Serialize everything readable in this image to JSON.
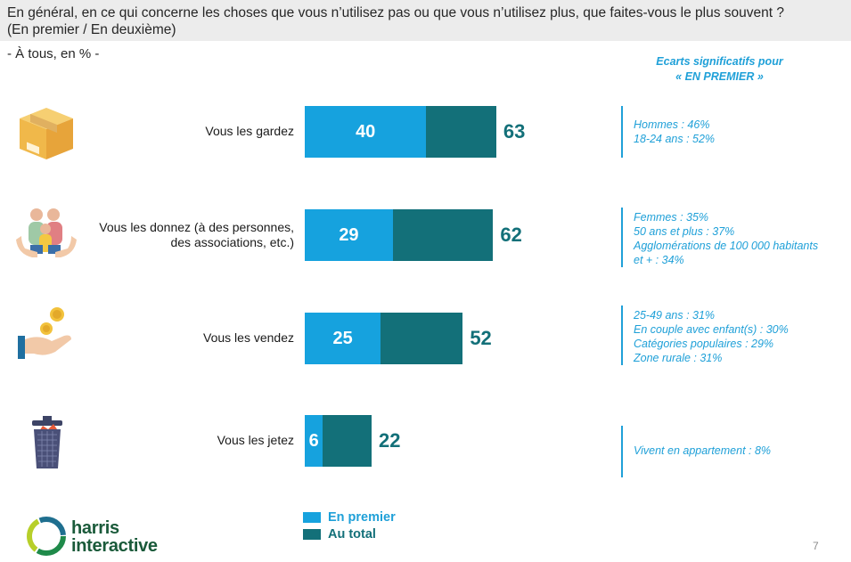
{
  "header": {
    "question_line1": "En général, en ce qui concerne les choses que vous n’utilisez pas ou que vous n’utilisez plus, que faites-vous le plus souvent ?",
    "question_line2": "(En premier / En deuxième)"
  },
  "base": "- À tous, en % -",
  "significance": {
    "title_line1": "Ecarts significatifs pour",
    "title_line2": "« EN PREMIER »"
  },
  "chart_data": {
    "type": "bar",
    "orientation": "horizontal",
    "stacked_overlay": true,
    "categories": [
      "Vous les gardez",
      "Vous les donnez (à des personnes, des associations, etc.)",
      "Vous les vendez",
      "Vous les jetez"
    ],
    "series": [
      {
        "name": "En premier",
        "values": [
          40,
          29,
          25,
          6
        ],
        "color": "#16a2de"
      },
      {
        "name": "Au total",
        "values": [
          63,
          62,
          52,
          22
        ],
        "color": "#137079"
      }
    ],
    "legend_position": "bottom-left",
    "grid": false
  },
  "rows": [
    {
      "label_lines": [
        "Vous les gardez"
      ],
      "icon": "cardboard-box-icon",
      "first": 40,
      "total": 63,
      "sig": [
        "Hommes : 46%",
        "18-24 ans : 52%"
      ]
    },
    {
      "label_lines": [
        "Vous les donnez (à des personnes,",
        "des associations, etc.)"
      ],
      "icon": "family-hands-icon",
      "first": 29,
      "total": 62,
      "sig": [
        "Femmes : 35%",
        "50 ans et plus : 37%",
        "Agglomérations de 100 000 habitants",
        "et + : 34%"
      ]
    },
    {
      "label_lines": [
        "Vous les vendez"
      ],
      "icon": "hand-coins-icon",
      "first": 25,
      "total": 52,
      "sig": [
        "25-49 ans : 31%",
        "En couple avec enfant(s) : 30%",
        "Catégories populaires : 29%",
        "Zone rurale : 31%"
      ]
    },
    {
      "label_lines": [
        "Vous les jetez"
      ],
      "icon": "trash-bin-icon",
      "first": 6,
      "total": 22,
      "sig": [
        "Vivent en appartement : 8%"
      ]
    }
  ],
  "legend": {
    "first_label": "En premier",
    "total_label": "Au total"
  },
  "logo": {
    "line1": "harris",
    "line2": "interactive"
  },
  "page_number": "7"
}
